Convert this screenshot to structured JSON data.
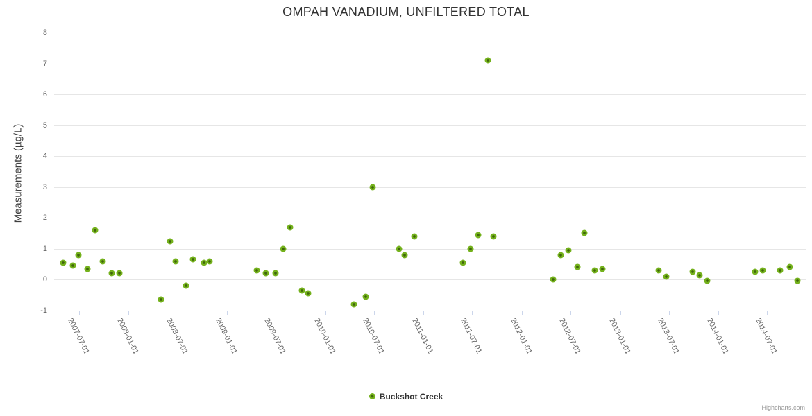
{
  "title": "OMPAH VANADIUM, UNFILTERED TOTAL",
  "credits": "Highcharts.com",
  "colors": {
    "title_text": "#333333",
    "axis_label_text": "#666666",
    "gridline": "#e6e6e6",
    "axis_line": "#ccd6eb",
    "marker_outer": "#74b11c",
    "marker_inner": "#3f660b",
    "legend_text": "#333333",
    "credits_text": "#999999",
    "background": "#ffffff"
  },
  "chart_data": {
    "type": "scatter",
    "title": "OMPAH VANADIUM, UNFILTERED TOTAL",
    "xlabel": "",
    "ylabel": "Measurements (µg/L)",
    "ylim": [
      -1,
      8
    ],
    "xlim": [
      "2007-03-30",
      "2014-11-21"
    ],
    "grid": true,
    "legend_position": "bottom",
    "yticks": [
      8,
      7,
      6,
      5,
      4,
      3,
      2,
      1,
      0,
      -1
    ],
    "xticks": [
      "2007-07-01",
      "2008-01-01",
      "2008-07-01",
      "2009-01-01",
      "2009-07-01",
      "2010-01-01",
      "2010-07-01",
      "2011-01-01",
      "2011-07-01",
      "2012-01-01",
      "2012-07-01",
      "2013-01-01",
      "2013-07-01",
      "2014-01-01",
      "2014-07-01"
    ],
    "series": [
      {
        "name": "Buckshot Creek",
        "color": "#74b11c",
        "points": [
          [
            "2007-05-02",
            0.55
          ],
          [
            "2007-06-08",
            0.45
          ],
          [
            "2007-06-28",
            0.8
          ],
          [
            "2007-07-31",
            0.35
          ],
          [
            "2007-08-28",
            1.6
          ],
          [
            "2007-09-27",
            0.6
          ],
          [
            "2007-10-29",
            0.2
          ],
          [
            "2007-11-28",
            0.2
          ],
          [
            "2008-04-30",
            -0.65
          ],
          [
            "2008-06-02",
            1.25
          ],
          [
            "2008-06-23",
            0.6
          ],
          [
            "2008-07-31",
            -0.2
          ],
          [
            "2008-08-28",
            0.65
          ],
          [
            "2008-10-07",
            0.55
          ],
          [
            "2008-10-27",
            0.6
          ],
          [
            "2009-04-21",
            0.3
          ],
          [
            "2009-05-24",
            0.2
          ],
          [
            "2009-07-01",
            0.2
          ],
          [
            "2009-07-29",
            1.0
          ],
          [
            "2009-08-23",
            1.7
          ],
          [
            "2009-10-07",
            -0.35
          ],
          [
            "2009-10-28",
            -0.45
          ],
          [
            "2010-04-18",
            -0.8
          ],
          [
            "2010-06-01",
            -0.55
          ],
          [
            "2010-06-27",
            3.0
          ],
          [
            "2010-10-02",
            1.0
          ],
          [
            "2010-10-23",
            0.8
          ],
          [
            "2010-11-28",
            1.4
          ],
          [
            "2011-05-28",
            0.55
          ],
          [
            "2011-06-25",
            1.0
          ],
          [
            "2011-07-22",
            1.45
          ],
          [
            "2011-08-29",
            7.1
          ],
          [
            "2011-09-19",
            1.4
          ],
          [
            "2012-04-26",
            0.0
          ],
          [
            "2012-05-24",
            0.8
          ],
          [
            "2012-06-22",
            0.95
          ],
          [
            "2012-07-27",
            0.4
          ],
          [
            "2012-08-21",
            1.5
          ],
          [
            "2012-09-28",
            0.3
          ],
          [
            "2012-10-26",
            0.35
          ],
          [
            "2013-05-23",
            0.3
          ],
          [
            "2013-06-20",
            0.1
          ],
          [
            "2013-09-26",
            0.25
          ],
          [
            "2013-10-23",
            0.15
          ],
          [
            "2013-11-20",
            -0.05
          ],
          [
            "2014-05-16",
            0.25
          ],
          [
            "2014-06-15",
            0.3
          ],
          [
            "2014-08-19",
            0.3
          ],
          [
            "2014-09-24",
            0.4
          ],
          [
            "2014-10-21",
            -0.05
          ]
        ]
      }
    ]
  }
}
